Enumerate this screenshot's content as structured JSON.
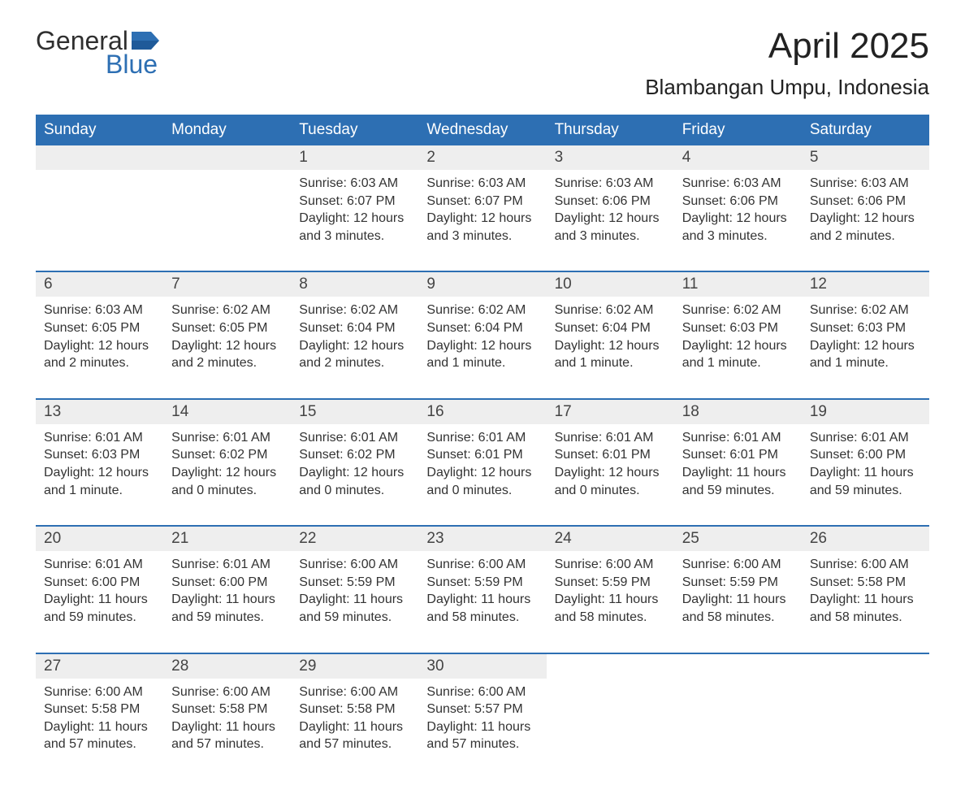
{
  "logo": {
    "word1": "General",
    "word2": "Blue",
    "word1_color": "#2f2f2f",
    "word2_color": "#2d6fb3",
    "flag_color": "#2d6fb3"
  },
  "title": "April 2025",
  "location": "Blambangan Umpu, Indonesia",
  "colors": {
    "header_bg": "#2d6fb3",
    "header_text": "#ffffff",
    "daynum_bg": "#eeeeee",
    "week_divider": "#2d6fb3",
    "body_text": "#333333",
    "page_bg": "#ffffff"
  },
  "typography": {
    "title_fontsize": 44,
    "location_fontsize": 26,
    "header_fontsize": 19,
    "daynum_fontsize": 19,
    "body_fontsize": 16
  },
  "weekday_headers": [
    "Sunday",
    "Monday",
    "Tuesday",
    "Wednesday",
    "Thursday",
    "Friday",
    "Saturday"
  ],
  "weeks": [
    [
      {
        "empty": true
      },
      {
        "empty": true
      },
      {
        "day": "1",
        "sunrise": "Sunrise: 6:03 AM",
        "sunset": "Sunset: 6:07 PM",
        "dl1": "Daylight: 12 hours",
        "dl2": "and 3 minutes."
      },
      {
        "day": "2",
        "sunrise": "Sunrise: 6:03 AM",
        "sunset": "Sunset: 6:07 PM",
        "dl1": "Daylight: 12 hours",
        "dl2": "and 3 minutes."
      },
      {
        "day": "3",
        "sunrise": "Sunrise: 6:03 AM",
        "sunset": "Sunset: 6:06 PM",
        "dl1": "Daylight: 12 hours",
        "dl2": "and 3 minutes."
      },
      {
        "day": "4",
        "sunrise": "Sunrise: 6:03 AM",
        "sunset": "Sunset: 6:06 PM",
        "dl1": "Daylight: 12 hours",
        "dl2": "and 3 minutes."
      },
      {
        "day": "5",
        "sunrise": "Sunrise: 6:03 AM",
        "sunset": "Sunset: 6:06 PM",
        "dl1": "Daylight: 12 hours",
        "dl2": "and 2 minutes."
      }
    ],
    [
      {
        "day": "6",
        "sunrise": "Sunrise: 6:03 AM",
        "sunset": "Sunset: 6:05 PM",
        "dl1": "Daylight: 12 hours",
        "dl2": "and 2 minutes."
      },
      {
        "day": "7",
        "sunrise": "Sunrise: 6:02 AM",
        "sunset": "Sunset: 6:05 PM",
        "dl1": "Daylight: 12 hours",
        "dl2": "and 2 minutes."
      },
      {
        "day": "8",
        "sunrise": "Sunrise: 6:02 AM",
        "sunset": "Sunset: 6:04 PM",
        "dl1": "Daylight: 12 hours",
        "dl2": "and 2 minutes."
      },
      {
        "day": "9",
        "sunrise": "Sunrise: 6:02 AM",
        "sunset": "Sunset: 6:04 PM",
        "dl1": "Daylight: 12 hours",
        "dl2": "and 1 minute."
      },
      {
        "day": "10",
        "sunrise": "Sunrise: 6:02 AM",
        "sunset": "Sunset: 6:04 PM",
        "dl1": "Daylight: 12 hours",
        "dl2": "and 1 minute."
      },
      {
        "day": "11",
        "sunrise": "Sunrise: 6:02 AM",
        "sunset": "Sunset: 6:03 PM",
        "dl1": "Daylight: 12 hours",
        "dl2": "and 1 minute."
      },
      {
        "day": "12",
        "sunrise": "Sunrise: 6:02 AM",
        "sunset": "Sunset: 6:03 PM",
        "dl1": "Daylight: 12 hours",
        "dl2": "and 1 minute."
      }
    ],
    [
      {
        "day": "13",
        "sunrise": "Sunrise: 6:01 AM",
        "sunset": "Sunset: 6:03 PM",
        "dl1": "Daylight: 12 hours",
        "dl2": "and 1 minute."
      },
      {
        "day": "14",
        "sunrise": "Sunrise: 6:01 AM",
        "sunset": "Sunset: 6:02 PM",
        "dl1": "Daylight: 12 hours",
        "dl2": "and 0 minutes."
      },
      {
        "day": "15",
        "sunrise": "Sunrise: 6:01 AM",
        "sunset": "Sunset: 6:02 PM",
        "dl1": "Daylight: 12 hours",
        "dl2": "and 0 minutes."
      },
      {
        "day": "16",
        "sunrise": "Sunrise: 6:01 AM",
        "sunset": "Sunset: 6:01 PM",
        "dl1": "Daylight: 12 hours",
        "dl2": "and 0 minutes."
      },
      {
        "day": "17",
        "sunrise": "Sunrise: 6:01 AM",
        "sunset": "Sunset: 6:01 PM",
        "dl1": "Daylight: 12 hours",
        "dl2": "and 0 minutes."
      },
      {
        "day": "18",
        "sunrise": "Sunrise: 6:01 AM",
        "sunset": "Sunset: 6:01 PM",
        "dl1": "Daylight: 11 hours",
        "dl2": "and 59 minutes."
      },
      {
        "day": "19",
        "sunrise": "Sunrise: 6:01 AM",
        "sunset": "Sunset: 6:00 PM",
        "dl1": "Daylight: 11 hours",
        "dl2": "and 59 minutes."
      }
    ],
    [
      {
        "day": "20",
        "sunrise": "Sunrise: 6:01 AM",
        "sunset": "Sunset: 6:00 PM",
        "dl1": "Daylight: 11 hours",
        "dl2": "and 59 minutes."
      },
      {
        "day": "21",
        "sunrise": "Sunrise: 6:01 AM",
        "sunset": "Sunset: 6:00 PM",
        "dl1": "Daylight: 11 hours",
        "dl2": "and 59 minutes."
      },
      {
        "day": "22",
        "sunrise": "Sunrise: 6:00 AM",
        "sunset": "Sunset: 5:59 PM",
        "dl1": "Daylight: 11 hours",
        "dl2": "and 59 minutes."
      },
      {
        "day": "23",
        "sunrise": "Sunrise: 6:00 AM",
        "sunset": "Sunset: 5:59 PM",
        "dl1": "Daylight: 11 hours",
        "dl2": "and 58 minutes."
      },
      {
        "day": "24",
        "sunrise": "Sunrise: 6:00 AM",
        "sunset": "Sunset: 5:59 PM",
        "dl1": "Daylight: 11 hours",
        "dl2": "and 58 minutes."
      },
      {
        "day": "25",
        "sunrise": "Sunrise: 6:00 AM",
        "sunset": "Sunset: 5:59 PM",
        "dl1": "Daylight: 11 hours",
        "dl2": "and 58 minutes."
      },
      {
        "day": "26",
        "sunrise": "Sunrise: 6:00 AM",
        "sunset": "Sunset: 5:58 PM",
        "dl1": "Daylight: 11 hours",
        "dl2": "and 58 minutes."
      }
    ],
    [
      {
        "day": "27",
        "sunrise": "Sunrise: 6:00 AM",
        "sunset": "Sunset: 5:58 PM",
        "dl1": "Daylight: 11 hours",
        "dl2": "and 57 minutes."
      },
      {
        "day": "28",
        "sunrise": "Sunrise: 6:00 AM",
        "sunset": "Sunset: 5:58 PM",
        "dl1": "Daylight: 11 hours",
        "dl2": "and 57 minutes."
      },
      {
        "day": "29",
        "sunrise": "Sunrise: 6:00 AM",
        "sunset": "Sunset: 5:58 PM",
        "dl1": "Daylight: 11 hours",
        "dl2": "and 57 minutes."
      },
      {
        "day": "30",
        "sunrise": "Sunrise: 6:00 AM",
        "sunset": "Sunset: 5:57 PM",
        "dl1": "Daylight: 11 hours",
        "dl2": "and 57 minutes."
      },
      {
        "empty": true
      },
      {
        "empty": true
      },
      {
        "empty": true
      }
    ]
  ]
}
